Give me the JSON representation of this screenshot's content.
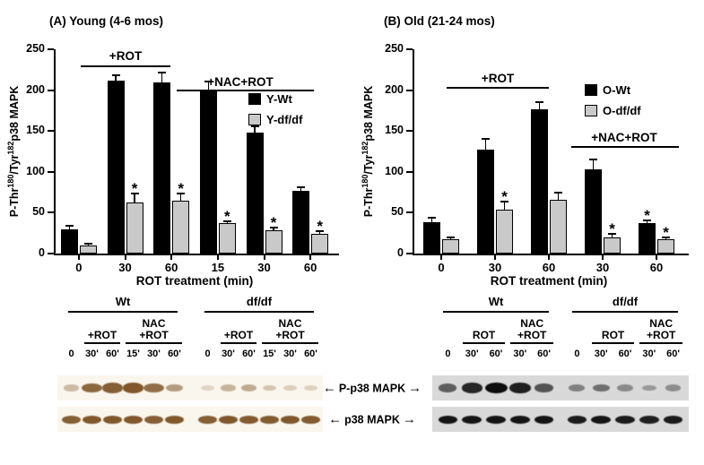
{
  "band_labels": {
    "pp38": "P-p38 MAPK",
    "p38": "p38 MAPK"
  },
  "chart_data": [
    {
      "type": "bar",
      "panel": "A",
      "title": "(A) Young (4-6 mos)",
      "xlabel": "ROT treatment (min)",
      "ylabel": "P-Thr180/Tyr182 p38 MAPK",
      "ylabel_parts": {
        "p1": "P-Thr",
        "s1": "180",
        "p2": "/Tyr",
        "s2": "182",
        "p3": "p38 MAPK"
      },
      "ylim": [
        0,
        250
      ],
      "yticks": [
        0,
        50,
        100,
        150,
        200,
        250
      ],
      "grid": false,
      "legend_position": "inside-upper-right",
      "sig_marker": "*",
      "categories": [
        "0",
        "30",
        "60",
        "15",
        "30",
        "60"
      ],
      "series": [
        {
          "name": "Y-Wt",
          "color": "#000000",
          "values": [
            30,
            212,
            209,
            200,
            148,
            77
          ],
          "errors": [
            4,
            6,
            12,
            10,
            8,
            4
          ],
          "sig": [
            false,
            false,
            false,
            false,
            false,
            false
          ]
        },
        {
          "name": "Y-df/df",
          "color": "#c9c9c9",
          "values": [
            10,
            63,
            65,
            37,
            29,
            24
          ],
          "errors": [
            2,
            10,
            8,
            3,
            3,
            3
          ],
          "sig": [
            false,
            true,
            true,
            true,
            true,
            true
          ]
        }
      ],
      "annotations": [
        {
          "text": "+ROT",
          "applies_to_category_indexes": [
            1,
            2
          ]
        },
        {
          "text": "+NAC+ROT",
          "applies_to_category_indexes": [
            3,
            5
          ]
        }
      ]
    },
    {
      "type": "bar",
      "panel": "B",
      "title": "(B) Old (21-24 mos)",
      "xlabel": "ROT treatment (min)",
      "ylabel": "P-Thr180/Tyr182 p38 MAPK",
      "ylabel_parts": {
        "p1": "P-Thr",
        "s1": "180",
        "p2": "/Tyr",
        "s2": "182",
        "p3": "p38 MAPK"
      },
      "ylim": [
        0,
        250
      ],
      "yticks": [
        0,
        50,
        100,
        150,
        200,
        250
      ],
      "grid": false,
      "legend_position": "inside-upper-right",
      "sig_marker": "*",
      "categories": [
        "0",
        "30",
        "60",
        "30",
        "60"
      ],
      "series": [
        {
          "name": "O-Wt",
          "color": "#000000",
          "values": [
            38,
            127,
            177,
            103,
            37
          ],
          "errors": [
            6,
            13,
            8,
            12,
            4
          ],
          "sig": [
            false,
            false,
            false,
            false,
            true
          ]
        },
        {
          "name": "O-df/df",
          "color": "#c9c9c9",
          "values": [
            17,
            54,
            66,
            20,
            17
          ],
          "errors": [
            3,
            10,
            9,
            4,
            3
          ],
          "sig": [
            false,
            true,
            false,
            true,
            true
          ]
        }
      ],
      "annotations": [
        {
          "text": "+ROT",
          "applies_to_category_indexes": [
            1,
            2
          ]
        },
        {
          "text": "+NAC+ROT",
          "applies_to_category_indexes": [
            3,
            4
          ]
        }
      ]
    }
  ],
  "blots": [
    {
      "panel": "A",
      "band_color": "#74491a",
      "strip_bg": "#faf6ed",
      "groups": [
        {
          "name": "Wt",
          "treatments": [
            {
              "label_lines": [
                "+ROT"
              ],
              "lanes": [
                1,
                2
              ]
            },
            {
              "label_lines": [
                "NAC",
                "+ROT"
              ],
              "lanes": [
                3,
                5
              ]
            }
          ],
          "lane_labels": [
            "0",
            "30'",
            "60'",
            "15'",
            "30'",
            "60'"
          ],
          "pp38": [
            0.25,
            0.8,
            0.85,
            0.9,
            0.75,
            0.45
          ],
          "p38": [
            0.85,
            0.9,
            0.9,
            0.9,
            0.85,
            0.9
          ]
        },
        {
          "name": "df/df",
          "treatments": [
            {
              "label_lines": [
                "+ROT"
              ],
              "lanes": [
                1,
                2
              ]
            },
            {
              "label_lines": [
                "NAC",
                "+ROT"
              ],
              "lanes": [
                3,
                5
              ]
            }
          ],
          "lane_labels": [
            "0",
            "30'",
            "60'",
            "15'",
            "30'",
            "60'"
          ],
          "pp38": [
            0.08,
            0.3,
            0.35,
            0.18,
            0.12,
            0.1
          ],
          "p38": [
            0.85,
            0.9,
            0.88,
            0.88,
            0.9,
            0.88
          ]
        }
      ]
    },
    {
      "panel": "B",
      "band_color": "#0d0d0d",
      "strip_bg": "#d9d9d9",
      "groups": [
        {
          "name": "Wt",
          "treatments": [
            {
              "label_lines": [
                "ROT"
              ],
              "lanes": [
                1,
                2
              ]
            },
            {
              "label_lines": [
                "NAC",
                "+ROT"
              ],
              "lanes": [
                3,
                4
              ]
            }
          ],
          "lane_labels": [
            "0",
            "30'",
            "60'",
            "30'",
            "60'"
          ],
          "pp38": [
            0.55,
            0.85,
            1.0,
            0.9,
            0.6
          ],
          "p38": [
            0.95,
            0.95,
            0.95,
            0.95,
            0.95
          ]
        },
        {
          "name": "df/df",
          "treatments": [
            {
              "label_lines": [
                "ROT"
              ],
              "lanes": [
                1,
                2
              ]
            },
            {
              "label_lines": [
                "NAC",
                "+ROT"
              ],
              "lanes": [
                3,
                4
              ]
            }
          ],
          "lane_labels": [
            "0",
            "30'",
            "60'",
            "30'",
            "60'"
          ],
          "pp38": [
            0.35,
            0.45,
            0.3,
            0.22,
            0.28
          ],
          "p38": [
            0.92,
            0.95,
            0.92,
            0.9,
            0.92
          ]
        }
      ]
    }
  ]
}
